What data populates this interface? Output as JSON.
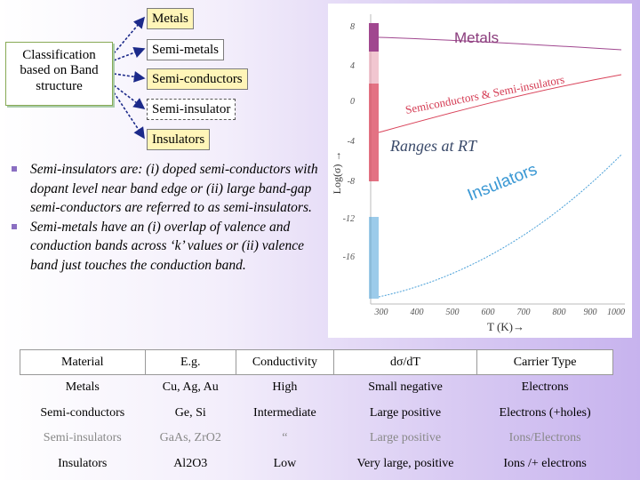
{
  "diagram": {
    "root": "Classification based on Band structure",
    "categories": [
      "Metals",
      "Semi-metals",
      "Semi-conductors",
      "Semi-insulator",
      "Insulators"
    ]
  },
  "notes": [
    "Semi-insulators are: (i) doped semi-conductors with dopant level near band edge or (ii) large band-gap semi-conductors are referred to as semi-insulators.",
    "Semi-metals have an (i) overlap of valence and conduction bands across ‘k’ values or (ii) valence band just touches the conduction band."
  ],
  "figure": {
    "ylabel": "Log(σ) →",
    "xlabel": "T (K)→",
    "title": "Ranges at RT",
    "yticks": [
      "8",
      "4",
      "0",
      "-4",
      "-8",
      "-12",
      "-16"
    ],
    "xticks": [
      "300",
      "400",
      "500",
      "600",
      "700",
      "800",
      "900",
      "1000"
    ],
    "labels": {
      "metals": "Metals",
      "semi": "Semiconductors & Semi-insulators",
      "insulators": "Insulators"
    },
    "colors": {
      "metals": "#a0478f",
      "semi": "#d9435a",
      "insulators": "#4aa0d8"
    }
  },
  "table": {
    "headers": [
      "Material",
      "E.g.",
      "Conductivity",
      "dσ/dT",
      "Carrier Type"
    ],
    "rows": [
      [
        "Metals",
        "Cu, Ag, Au",
        "High",
        "Small negative",
        "Electrons"
      ],
      [
        "Semi-conductors",
        "Ge, Si",
        "Intermediate",
        "Large positive",
        "Electrons (+holes)"
      ],
      [
        "Semi-insulators",
        "GaAs, ZrO2",
        "“",
        "Large positive",
        "Ions/Electrons"
      ],
      [
        "Insulators",
        "Al2O3",
        "Low",
        "Very large, positive",
        "Ions /+ electrons"
      ]
    ]
  }
}
